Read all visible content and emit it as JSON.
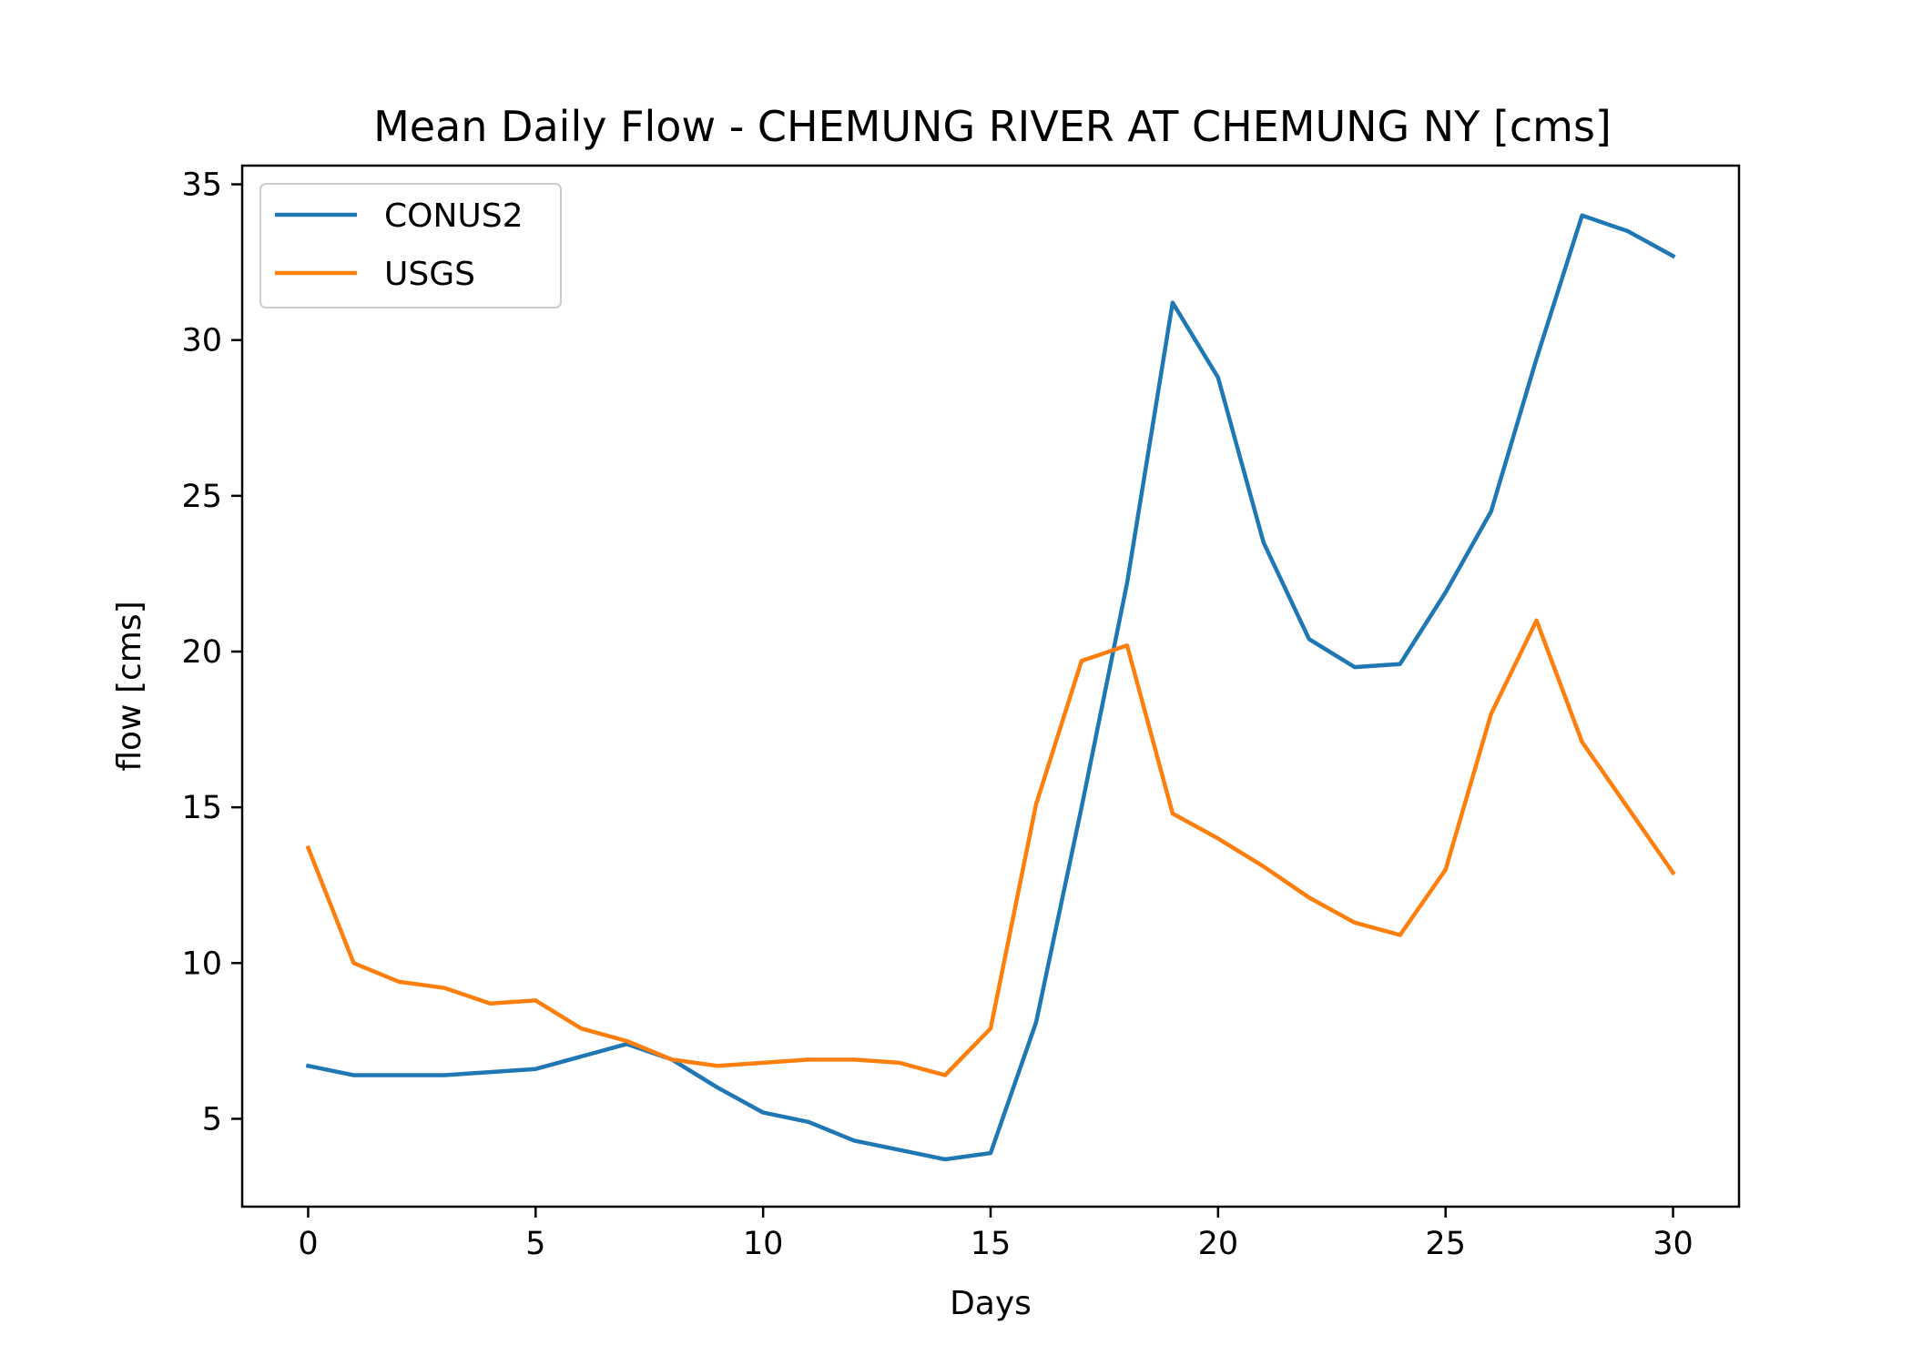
{
  "chart_data": {
    "type": "line",
    "title": "Mean Daily Flow - CHEMUNG RIVER AT CHEMUNG NY [cms]",
    "xlabel": "Days",
    "ylabel": "flow [cms]",
    "xlim": [
      -1.45,
      31.45
    ],
    "ylim": [
      2.18,
      35.6
    ],
    "xticks": [
      0,
      5,
      10,
      15,
      20,
      25,
      30
    ],
    "yticks": [
      5,
      10,
      15,
      20,
      25,
      30,
      35
    ],
    "grid": false,
    "legend_position": "top-left",
    "x": [
      0,
      1,
      2,
      3,
      4,
      5,
      6,
      7,
      8,
      9,
      10,
      11,
      12,
      13,
      14,
      15,
      16,
      17,
      18,
      19,
      20,
      21,
      22,
      23,
      24,
      25,
      26,
      27,
      28,
      29,
      30
    ],
    "series": [
      {
        "name": "CONUS2",
        "color": "#1f77b4",
        "values": [
          6.7,
          6.4,
          6.4,
          6.4,
          6.5,
          6.6,
          7.0,
          7.4,
          6.9,
          6.0,
          5.2,
          4.9,
          4.3,
          4.0,
          3.7,
          3.9,
          8.1,
          15.0,
          22.2,
          31.2,
          28.8,
          23.5,
          20.4,
          19.5,
          19.6,
          21.9,
          24.5,
          29.4,
          34.0,
          33.5,
          32.7
        ]
      },
      {
        "name": "USGS",
        "color": "#ff7f0e",
        "values": [
          13.7,
          10.0,
          9.4,
          9.2,
          8.7,
          8.8,
          7.9,
          7.5,
          6.9,
          6.7,
          6.8,
          6.9,
          6.9,
          6.8,
          6.4,
          7.9,
          15.1,
          19.7,
          20.2,
          14.8,
          14.0,
          13.1,
          12.1,
          11.3,
          10.9,
          13.0,
          18.0,
          21.0,
          17.1,
          15.0,
          12.9
        ]
      }
    ]
  }
}
